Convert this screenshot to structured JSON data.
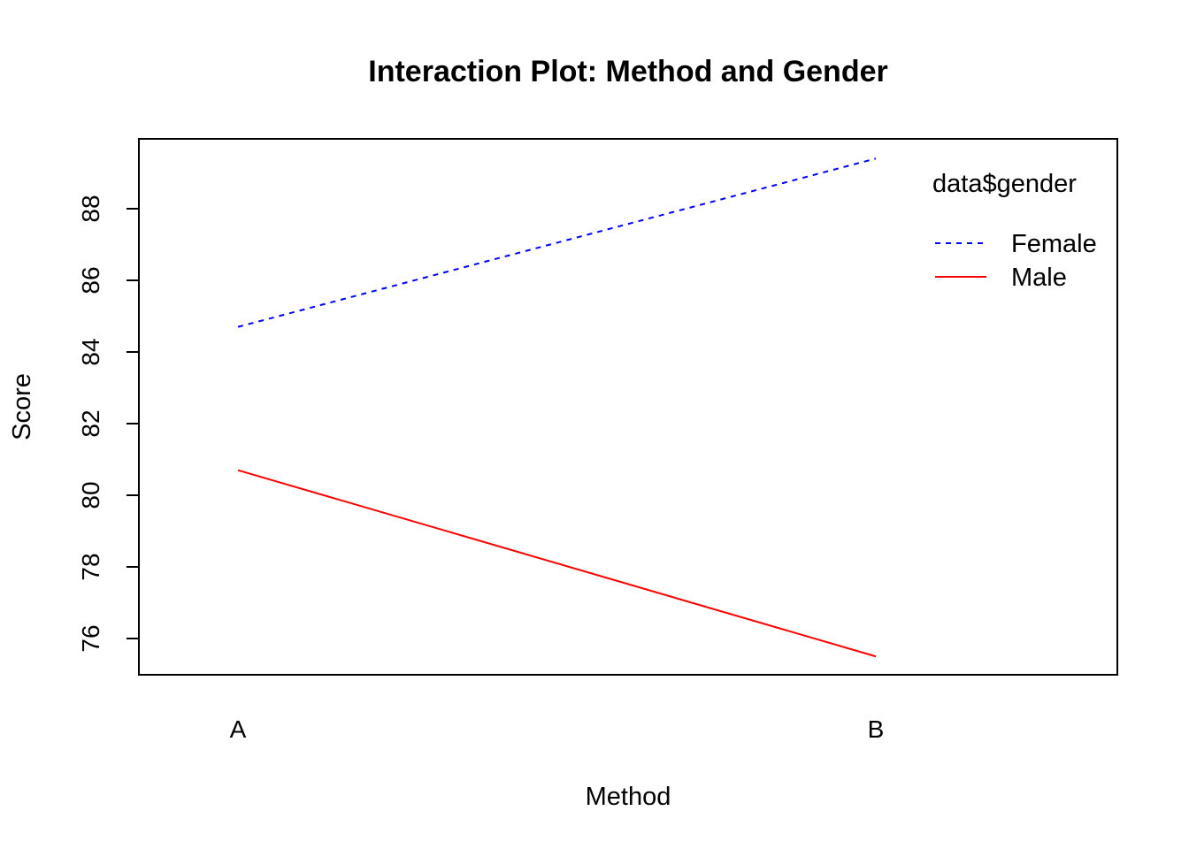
{
  "chart_data": {
    "type": "line",
    "title": "Interaction Plot: Method and Gender",
    "xlabel": "Method",
    "ylabel": "Score",
    "categories": [
      "A",
      "B"
    ],
    "ylim": [
      75,
      90
    ],
    "yticks": [
      76,
      78,
      80,
      82,
      84,
      86,
      88
    ],
    "legend": {
      "title": "data$gender",
      "position": "top-right"
    },
    "series": [
      {
        "name": "Female",
        "values": [
          84.7,
          89.4
        ],
        "color": "#0000ff",
        "linestyle": "dashed"
      },
      {
        "name": "Male",
        "values": [
          80.7,
          75.5
        ],
        "color": "#ff0000",
        "linestyle": "solid"
      }
    ],
    "grid": false
  }
}
